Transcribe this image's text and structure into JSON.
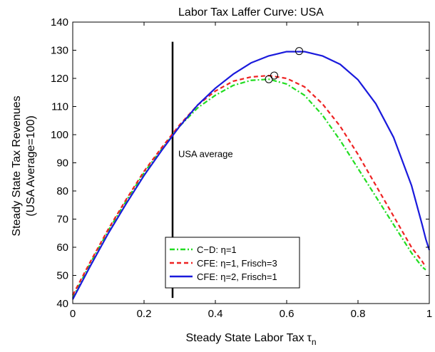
{
  "chart_data": {
    "type": "line",
    "title": "Labor Tax Laffer Curve: USA",
    "xlabel": "Steady State Labor Tax",
    "xlabel_symbol": "τ",
    "xlabel_subscript": "n",
    "ylabel_line1": "Steady State Tax Revenues",
    "ylabel_line2": "(USA Average=100)",
    "xlim": [
      0,
      1
    ],
    "ylim": [
      40,
      140
    ],
    "xticks": [
      0,
      0.2,
      0.4,
      0.6,
      0.8,
      1
    ],
    "xtick_labels": [
      "0",
      "0.2",
      "0.4",
      "0.6",
      "0.8",
      "1"
    ],
    "yticks": [
      40,
      50,
      60,
      70,
      80,
      90,
      100,
      110,
      120,
      130,
      140
    ],
    "ytick_labels": [
      "40",
      "50",
      "60",
      "70",
      "80",
      "90",
      "100",
      "110",
      "120",
      "130",
      "140"
    ],
    "grid": false,
    "legend_position": "bottom-center",
    "vertical_line": {
      "x": 0.28,
      "y_range": [
        42,
        133
      ],
      "label": "USA average",
      "label_y": 92,
      "color": "#000000"
    },
    "series": [
      {
        "name": "C−D: η=1",
        "style": "dashdot",
        "color": "#22dd22",
        "x": [
          0.0,
          0.05,
          0.1,
          0.15,
          0.2,
          0.25,
          0.3,
          0.35,
          0.4,
          0.45,
          0.5,
          0.55,
          0.6,
          0.65,
          0.7,
          0.75,
          0.8,
          0.85,
          0.9,
          0.95,
          0.98,
          0.99
        ],
        "y": [
          42,
          54.5,
          66,
          76.5,
          86.5,
          95,
          103,
          109.5,
          114,
          117.5,
          119.3,
          119.7,
          118,
          114,
          107,
          98,
          88,
          78,
          68,
          58,
          53,
          52
        ],
        "peak": {
          "x": 0.55,
          "y": 119.7
        }
      },
      {
        "name": "CFE: η=1, Frisch=3",
        "style": "dashed",
        "color": "#ee2222",
        "x": [
          0.0,
          0.05,
          0.1,
          0.15,
          0.2,
          0.25,
          0.3,
          0.35,
          0.4,
          0.45,
          0.5,
          0.55,
          0.6,
          0.65,
          0.7,
          0.75,
          0.8,
          0.85,
          0.9,
          0.95,
          0.98,
          0.99
        ],
        "y": [
          43,
          55,
          66.5,
          77,
          87,
          95.5,
          103.5,
          110.5,
          115.5,
          119,
          120.5,
          121,
          120,
          117,
          111,
          103,
          93,
          82,
          71,
          60,
          55,
          53
        ],
        "peak": {
          "x": 0.565,
          "y": 121
        }
      },
      {
        "name": "CFE: η=2, Frisch=1",
        "style": "solid",
        "color": "#1a1adc",
        "x": [
          0.0,
          0.05,
          0.1,
          0.15,
          0.2,
          0.25,
          0.3,
          0.35,
          0.4,
          0.45,
          0.5,
          0.55,
          0.6,
          0.65,
          0.7,
          0.75,
          0.8,
          0.85,
          0.9,
          0.95,
          0.98,
          0.99,
          1.0
        ],
        "y": [
          41.5,
          53.5,
          65,
          75.5,
          85.5,
          94.5,
          103,
          110.5,
          116.5,
          121.5,
          125.5,
          128,
          129.5,
          129.5,
          128,
          125,
          119.5,
          111,
          99,
          82,
          68,
          63,
          59
        ],
        "peak": {
          "x": 0.635,
          "y": 129.7
        }
      }
    ]
  }
}
